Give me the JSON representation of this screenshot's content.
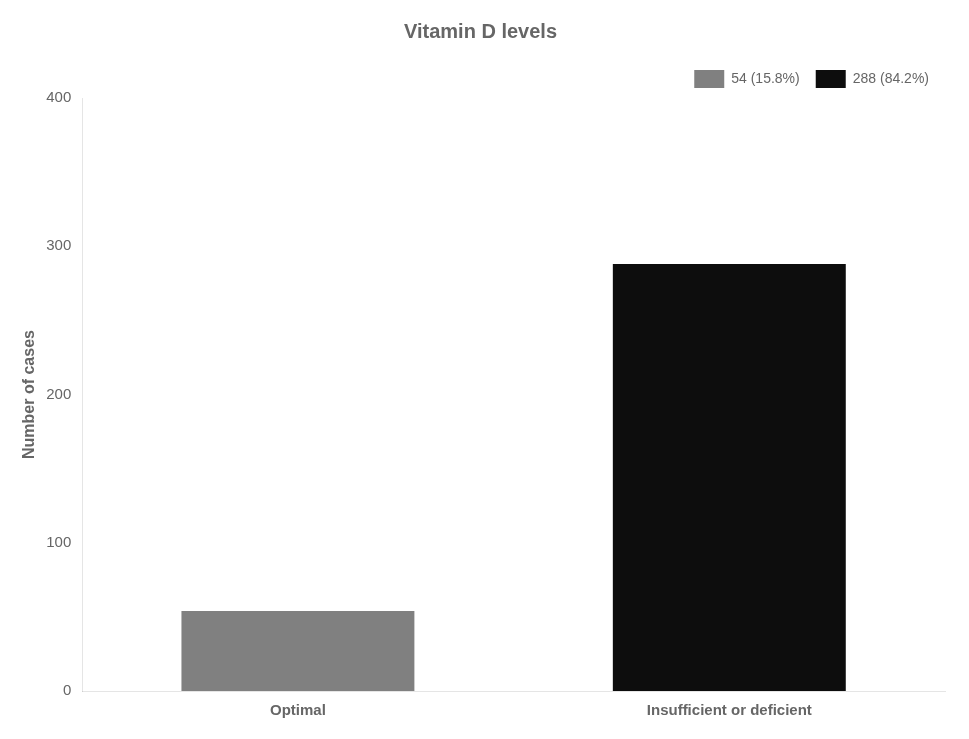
{
  "chart_data": {
    "type": "bar",
    "title": "Vitamin D levels",
    "categories": [
      "Optimal",
      "Insufficient or deficient"
    ],
    "series": [
      {
        "name": "54 (15.8%)",
        "color": "#808080",
        "values": [
          54,
          null
        ]
      },
      {
        "name": "288 (84.2%)",
        "color": "#0d0d0d",
        "values": [
          null,
          288
        ]
      }
    ],
    "ylabel": "Number of cases",
    "ylim": [
      0,
      400
    ],
    "yticks": [
      0,
      100,
      200,
      300,
      400
    ],
    "grid": false,
    "legend": "upper right"
  }
}
